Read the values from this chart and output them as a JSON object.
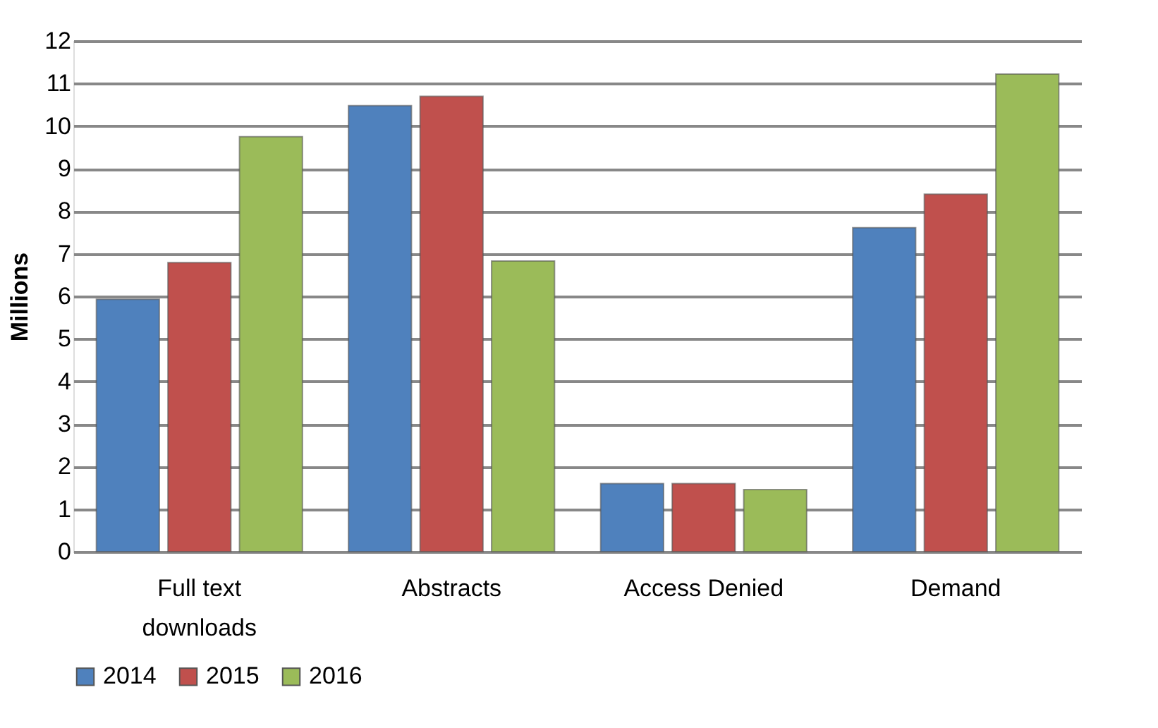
{
  "chart_data": {
    "type": "bar",
    "ylabel": "Millions",
    "categories": [
      "Full text downloads",
      "Abstracts",
      "Access Denied",
      "Demand"
    ],
    "series": [
      {
        "name": "2014",
        "color": "#4f81bd",
        "values": [
          5.93,
          10.48,
          1.6,
          7.61
        ]
      },
      {
        "name": "2015",
        "color": "#c0504d",
        "values": [
          6.79,
          10.7,
          1.6,
          8.4
        ]
      },
      {
        "name": "2016",
        "color": "#9bbb59",
        "values": [
          9.75,
          6.83,
          1.46,
          11.22
        ]
      }
    ],
    "ylim": [
      0,
      12
    ],
    "yticks": [
      0,
      1,
      2,
      3,
      4,
      5,
      6,
      7,
      8,
      9,
      10,
      11,
      12
    ],
    "grid": "y",
    "legend": "bottom"
  }
}
